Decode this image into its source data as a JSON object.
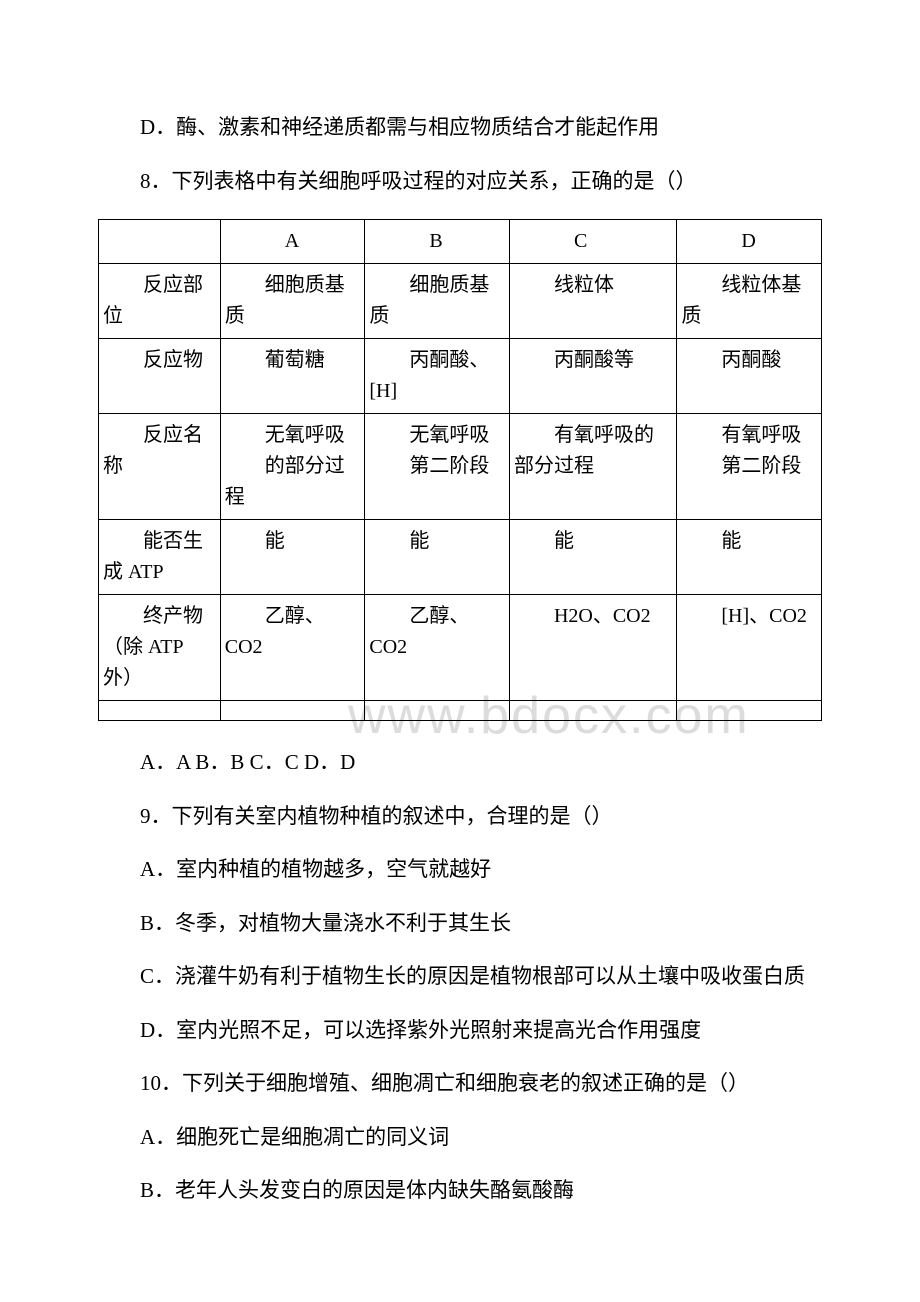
{
  "paragraphs": {
    "p_d_option": "D．酶、激素和神经递质都需与相应物质结合才能起作用",
    "q8": "8．下列表格中有关细胞呼吸过程的对应关系，正确的是（）",
    "q8_options": "A．A B．B C．C D．D",
    "q9": "9．下列有关室内植物种植的叙述中，合理的是（）",
    "q9_a": "A．室内种植的植物越多，空气就越好",
    "q9_b": "B．冬季，对植物大量浇水不利于其生长",
    "q9_c": "C．浇灌牛奶有利于植物生长的原因是植物根部可以从土壤中吸收蛋白质",
    "q9_d": "D．室内光照不足，可以选择紫外光照射来提高光合作用强度",
    "q10": "10．下列关于细胞增殖、细胞凋亡和细胞衰老的叙述正确的是（）",
    "q10_a": "A．细胞死亡是细胞凋亡的同义词",
    "q10_b": "B．老年人头发变白的原因是体内缺失酪氨酸酶"
  },
  "table": {
    "headers": [
      "",
      "A",
      "B",
      "C",
      "D"
    ],
    "row1": {
      "label": "反应部位",
      "a": "细胞质基质",
      "b": "细胞质基质",
      "c": "线粒体",
      "d": "线粒体基质"
    },
    "row2": {
      "label": "反应物",
      "a": "葡萄糖",
      "b": "丙酮酸、[H]",
      "c": "丙酮酸等",
      "d": "丙酮酸"
    },
    "row3": {
      "label": "反应名称",
      "a_line1": "无氧呼吸",
      "a_line2": "的部分过程",
      "b_line1": "无氧呼吸",
      "b_line2": "第二阶段",
      "c": "有氧呼吸的部分过程",
      "d_line1": "有氧呼吸",
      "d_line2": "第二阶段"
    },
    "row4": {
      "label": "能否生成 ATP",
      "a": "能",
      "b": "能",
      "c": "能",
      "d": "能"
    },
    "row5": {
      "label": "终产物（除 ATP 外）",
      "a": "乙醇、CO2",
      "b": "乙醇、CO2",
      "c": "H2O、CO2",
      "d": "[H]、CO2"
    }
  },
  "watermark": "www.bdocx.com",
  "styles": {
    "body_bg": "#ffffff",
    "text_color": "#000000",
    "border_color": "#000000",
    "watermark_color": "#dcdcdc",
    "font_size_body": 21,
    "font_size_table": 20,
    "font_size_watermark": 52
  }
}
